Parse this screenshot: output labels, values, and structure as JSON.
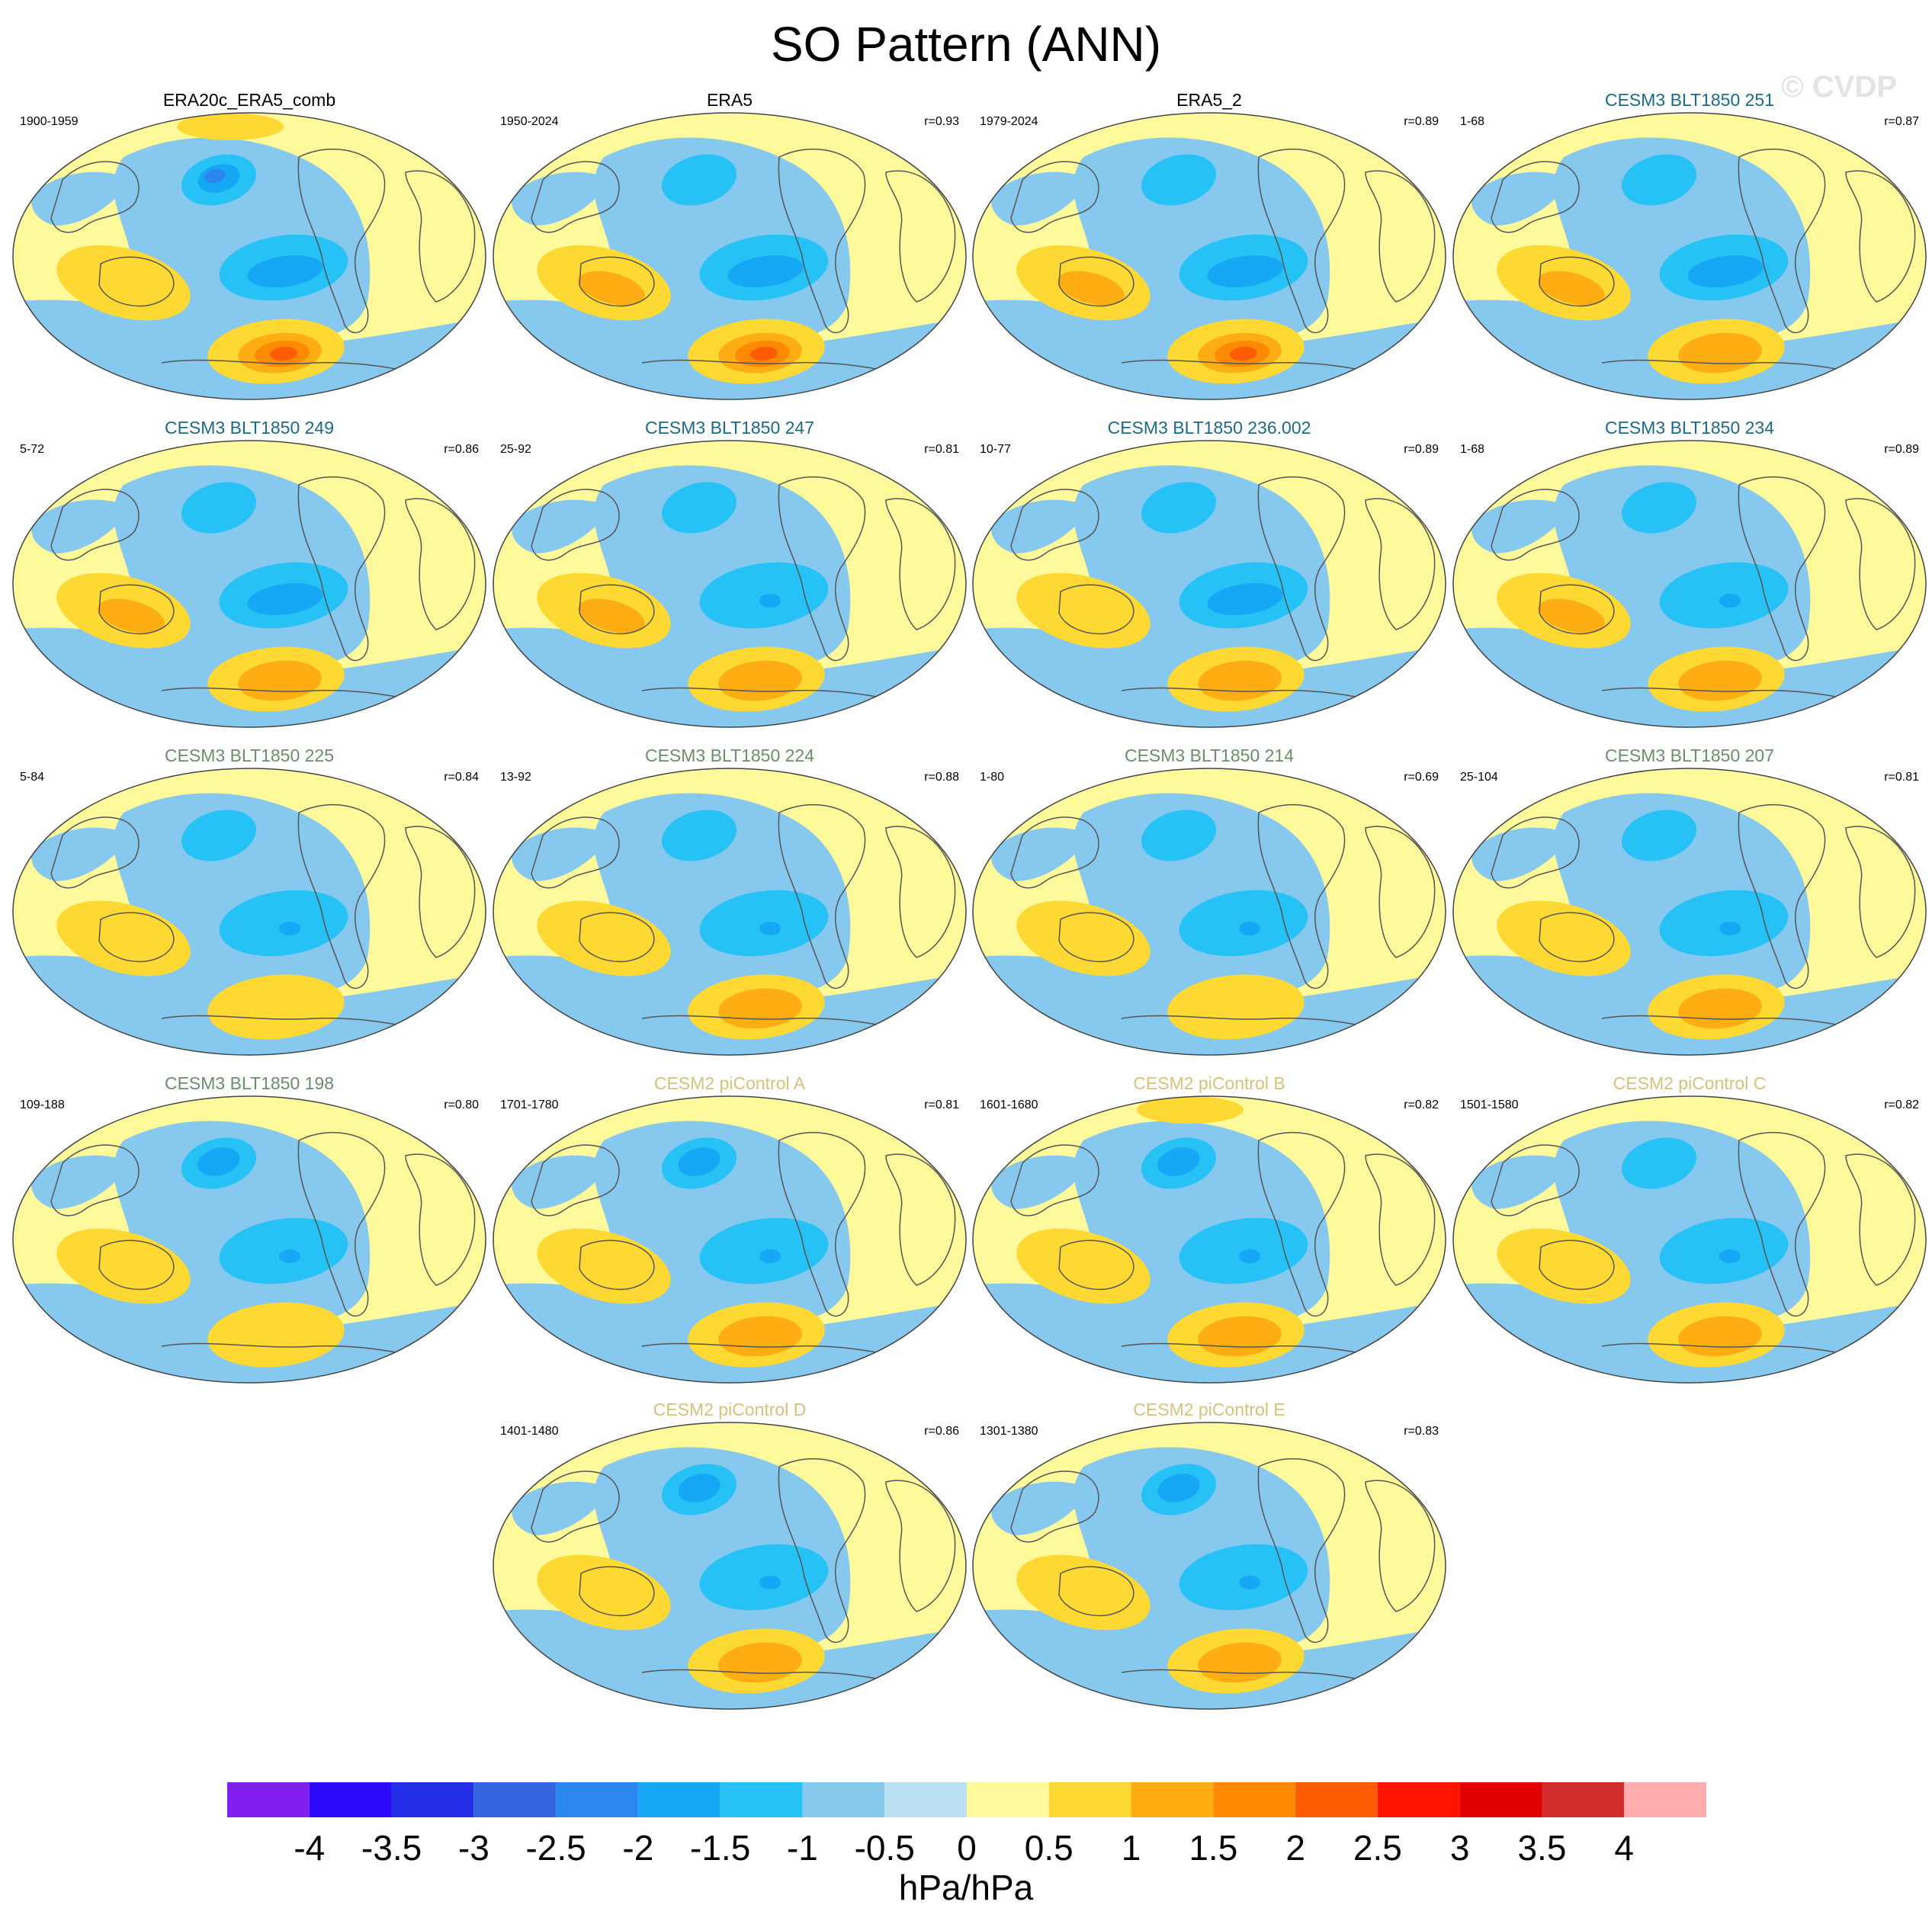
{
  "page": {
    "title": "SO Pattern (ANN)",
    "watermark": "© CVDP"
  },
  "colors": {
    "title_obs": "#000000",
    "title_cesm3_a": "#1b6a8a",
    "title_cesm3_b": "#6b8e6b",
    "title_cesm2": "#d6c27a",
    "coast": "#555555",
    "outline": "#444444"
  },
  "chart_data": {
    "type": "heatmap",
    "description_units": "hPa/hPa",
    "colorbar": {
      "labels": [
        "-4",
        "-3.5",
        "-3",
        "-2.5",
        "-2",
        "-1.5",
        "-1",
        "-0.5",
        "0",
        "0.5",
        "1",
        "1.5",
        "2",
        "2.5",
        "3",
        "3.5",
        "4"
      ],
      "units": "hPa/hPa",
      "colors": [
        "#7f20ee",
        "#2e0afa",
        "#2430e8",
        "#3566e0",
        "#2b86f0",
        "#16a7f5",
        "#26c1f5",
        "#86c8ee",
        "#b9e1f2",
        "#fefa9c",
        "#fed934",
        "#feae13",
        "#fe8a03",
        "#fe5c00",
        "#fe1300",
        "#e00000",
        "#d32a2a",
        "#feaeae"
      ]
    },
    "panels": [
      {
        "title": "ERA20c_ERA5_comb",
        "period": "1900-1959",
        "corr": "",
        "title_color": "obs",
        "nh_low": 3,
        "atl_low": 2,
        "sa_high": 3,
        "au_high": 1,
        "arctic_high": 1
      },
      {
        "title": "ERA5",
        "period": "1950-2024",
        "corr": "r=0.93",
        "title_color": "obs",
        "nh_low": 1,
        "atl_low": 2,
        "sa_high": 3,
        "au_high": 2,
        "arctic_high": 0
      },
      {
        "title": "ERA5_2",
        "period": "1979-2024",
        "corr": "r=0.89",
        "title_color": "obs",
        "nh_low": 1,
        "atl_low": 2,
        "sa_high": 3,
        "au_high": 2,
        "arctic_high": 0
      },
      {
        "title": "CESM3 BLT1850 251",
        "period": "1-68",
        "corr": "r=0.87",
        "title_color": "cesm3_a",
        "nh_low": 1,
        "atl_low": 2,
        "sa_high": 2,
        "au_high": 2,
        "arctic_high": 0
      },
      {
        "title": "CESM3 BLT1850 249",
        "period": "5-72",
        "corr": "r=0.86",
        "title_color": "cesm3_a",
        "nh_low": 1,
        "atl_low": 2,
        "sa_high": 2,
        "au_high": 2,
        "arctic_high": 0
      },
      {
        "title": "CESM3 BLT1850 247",
        "period": "25-92",
        "corr": "r=0.81",
        "title_color": "cesm3_a",
        "nh_low": 1,
        "atl_low": 1,
        "sa_high": 2,
        "au_high": 2,
        "arctic_high": 0
      },
      {
        "title": "CESM3 BLT1850 236.002",
        "period": "10-77",
        "corr": "r=0.89",
        "title_color": "cesm3_a",
        "nh_low": 1,
        "atl_low": 2,
        "sa_high": 2,
        "au_high": 1,
        "arctic_high": 0
      },
      {
        "title": "CESM3 BLT1850 234",
        "period": "1-68",
        "corr": "r=0.89",
        "title_color": "cesm3_a",
        "nh_low": 1,
        "atl_low": 1,
        "sa_high": 2,
        "au_high": 2,
        "arctic_high": 0
      },
      {
        "title": "CESM3 BLT1850 225",
        "period": "5-84",
        "corr": "r=0.84",
        "title_color": "cesm3_b",
        "nh_low": 1,
        "atl_low": 1,
        "sa_high": 1,
        "au_high": 1,
        "arctic_high": 0
      },
      {
        "title": "CESM3 BLT1850 224",
        "period": "13-92",
        "corr": "r=0.88",
        "title_color": "cesm3_b",
        "nh_low": 1,
        "atl_low": 1,
        "sa_high": 2,
        "au_high": 1,
        "arctic_high": 0
      },
      {
        "title": "CESM3 BLT1850 214",
        "period": "1-80",
        "corr": "r=0.69",
        "title_color": "cesm3_b",
        "nh_low": 1,
        "atl_low": 1,
        "sa_high": 1,
        "au_high": 1,
        "arctic_high": 0
      },
      {
        "title": "CESM3 BLT1850 207",
        "period": "25-104",
        "corr": "r=0.81",
        "title_color": "cesm3_b",
        "nh_low": 1,
        "atl_low": 1,
        "sa_high": 2,
        "au_high": 1,
        "arctic_high": 0
      },
      {
        "title": "CESM3 BLT1850 198",
        "period": "109-188",
        "corr": "r=0.80",
        "title_color": "cesm3_b",
        "nh_low": 2,
        "atl_low": 1,
        "sa_high": 1,
        "au_high": 1,
        "arctic_high": 0
      },
      {
        "title": "CESM2 piControl A",
        "period": "1701-1780",
        "corr": "r=0.81",
        "title_color": "cesm2",
        "nh_low": 2,
        "atl_low": 1,
        "sa_high": 2,
        "au_high": 1,
        "arctic_high": 0
      },
      {
        "title": "CESM2 piControl B",
        "period": "1601-1680",
        "corr": "r=0.82",
        "title_color": "cesm2",
        "nh_low": 2,
        "atl_low": 1,
        "sa_high": 2,
        "au_high": 1,
        "arctic_high": 1
      },
      {
        "title": "CESM2 piControl C",
        "period": "1501-1580",
        "corr": "r=0.82",
        "title_color": "cesm2",
        "nh_low": 1,
        "atl_low": 1,
        "sa_high": 2,
        "au_high": 1,
        "arctic_high": 0
      },
      {
        "title": "CESM2 piControl D",
        "period": "1401-1480",
        "corr": "r=0.86",
        "title_color": "cesm2",
        "nh_low": 2,
        "atl_low": 1,
        "sa_high": 2,
        "au_high": 1,
        "arctic_high": 0
      },
      {
        "title": "CESM2 piControl E",
        "period": "1301-1380",
        "corr": "r=0.83",
        "title_color": "cesm2",
        "nh_low": 2,
        "atl_low": 1,
        "sa_high": 2,
        "au_high": 1,
        "arctic_high": 0
      }
    ]
  }
}
